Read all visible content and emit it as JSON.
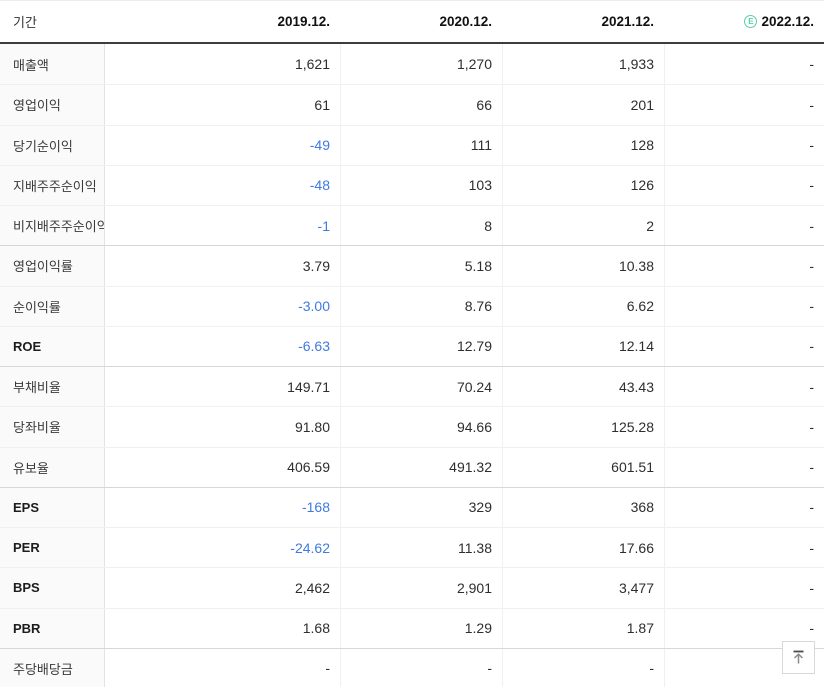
{
  "table": {
    "header": {
      "period_label": "기간",
      "estimate_symbol": "E",
      "columns": [
        {
          "label": "2019.12."
        },
        {
          "label": "2020.12."
        },
        {
          "label": "2021.12."
        },
        {
          "label": "2022.12.",
          "estimate": true
        }
      ]
    },
    "rows": [
      {
        "label": "매출액",
        "values": [
          "1,621",
          "1,270",
          "1,933",
          "-"
        ]
      },
      {
        "label": "영업이익",
        "values": [
          "61",
          "66",
          "201",
          "-"
        ]
      },
      {
        "label": "당기순이익",
        "values": [
          "-49",
          "111",
          "128",
          "-"
        ]
      },
      {
        "label": "지배주주순이익",
        "values": [
          "-48",
          "103",
          "126",
          "-"
        ]
      },
      {
        "label": "비지배주주순이익",
        "values": [
          "-1",
          "8",
          "2",
          "-"
        ]
      },
      {
        "label": "영업이익률",
        "values": [
          "3.79",
          "5.18",
          "10.38",
          "-"
        ],
        "section_start": true
      },
      {
        "label": "순이익률",
        "values": [
          "-3.00",
          "8.76",
          "6.62",
          "-"
        ]
      },
      {
        "label": "ROE",
        "values": [
          "-6.63",
          "12.79",
          "12.14",
          "-"
        ],
        "bold": true
      },
      {
        "label": "부채비율",
        "values": [
          "149.71",
          "70.24",
          "43.43",
          "-"
        ],
        "section_start": true
      },
      {
        "label": "당좌비율",
        "values": [
          "91.80",
          "94.66",
          "125.28",
          "-"
        ]
      },
      {
        "label": "유보율",
        "values": [
          "406.59",
          "491.32",
          "601.51",
          "-"
        ]
      },
      {
        "label": "EPS",
        "values": [
          "-168",
          "329",
          "368",
          "-"
        ],
        "bold": true,
        "section_start": true
      },
      {
        "label": "PER",
        "values": [
          "-24.62",
          "11.38",
          "17.66",
          "-"
        ],
        "bold": true
      },
      {
        "label": "BPS",
        "values": [
          "2,462",
          "2,901",
          "3,477",
          "-"
        ],
        "bold": true
      },
      {
        "label": "PBR",
        "values": [
          "1.68",
          "1.29",
          "1.87",
          "-"
        ],
        "bold": true
      },
      {
        "label": "주당배당금",
        "values": [
          "-",
          "-",
          "-",
          "-"
        ],
        "section_start": true
      }
    ]
  },
  "scroll_top_button": {
    "icon": "arrow-up-to-top"
  },
  "colors": {
    "negative": "#3f7ae0",
    "estimate": "#57d0a8",
    "header_rule": "#3d3d3d",
    "label_bg": "#fafafa"
  }
}
